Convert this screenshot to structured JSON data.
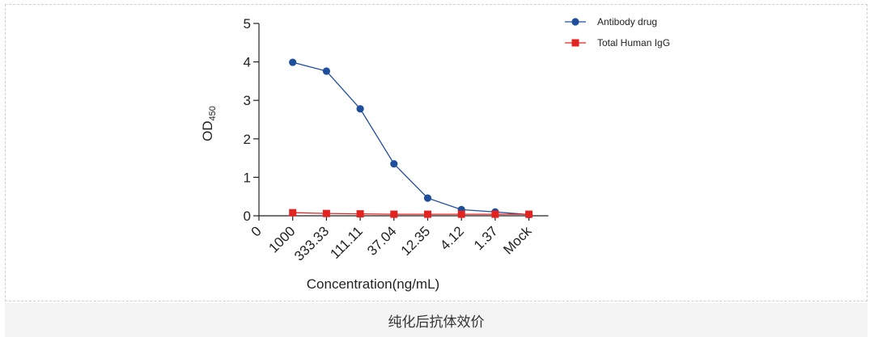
{
  "caption": "纯化后抗体效价",
  "chart_data": {
    "type": "line",
    "title": "",
    "xlabel": "Concentration(ng/mL)",
    "ylabel_main": "OD",
    "ylabel_sub": "450",
    "categories": [
      "0",
      "1000",
      "333.33",
      "111.11",
      "37.04",
      "12.35",
      "4.12",
      "1.37",
      "Mock"
    ],
    "ylim": [
      0,
      5
    ],
    "yticks": [
      0,
      1,
      2,
      3,
      4,
      5
    ],
    "legend_position": "top-right",
    "series": [
      {
        "name": "Antibody drug",
        "marker": "circle",
        "color": "#1f4e9c",
        "values": [
          null,
          3.99,
          3.76,
          2.78,
          1.35,
          0.46,
          0.16,
          0.1,
          0.03
        ]
      },
      {
        "name": "Total Human IgG",
        "marker": "square",
        "color": "#e3231f",
        "values": [
          null,
          0.08,
          0.06,
          0.05,
          0.04,
          0.04,
          0.04,
          0.04,
          0.04
        ]
      }
    ]
  }
}
